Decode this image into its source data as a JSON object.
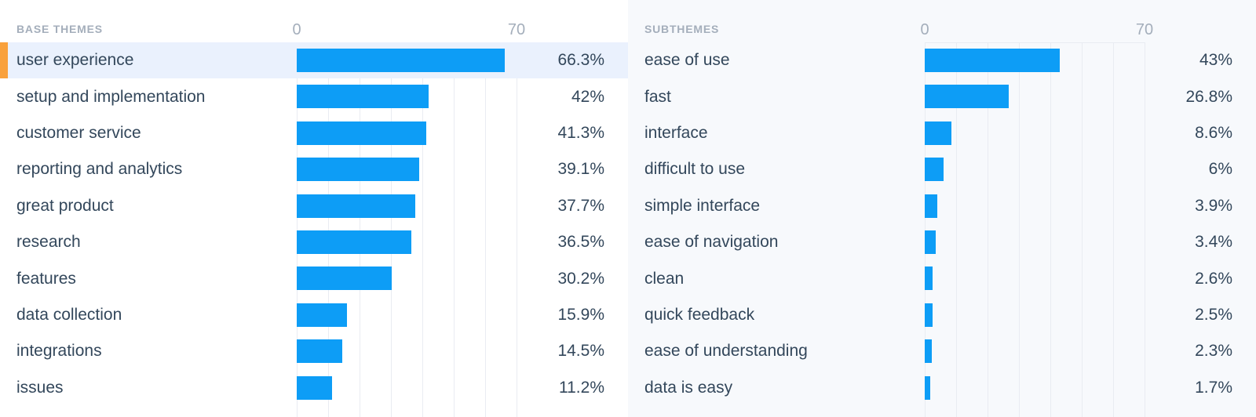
{
  "colors": {
    "bar": "#0d9df6",
    "text": "#33475b",
    "muted": "#a4aebb",
    "grid": "#e9ecf2",
    "selected_row_bg": "#eaf1fd",
    "selected_marker": "#f9a13c",
    "panel_right_bg": "#f7f9fc"
  },
  "chart_data": [
    {
      "type": "bar",
      "orientation": "horizontal",
      "title": "BASE THEMES",
      "categories": [
        "user experience",
        "setup and implementation",
        "customer service",
        "reporting and analytics",
        "great product",
        "research",
        "features",
        "data collection",
        "integrations",
        "issues"
      ],
      "values": [
        66.3,
        42,
        41.3,
        39.1,
        37.7,
        36.5,
        30.2,
        15.9,
        14.5,
        11.2
      ],
      "value_labels": [
        "66.3%",
        "42%",
        "41.3%",
        "39.1%",
        "37.7%",
        "36.5%",
        "30.2%",
        "15.9%",
        "14.5%",
        "11.2%"
      ],
      "selected_index": 0,
      "axis": {
        "min": 0,
        "max": 70,
        "ticks": [
          "0",
          "70"
        ]
      },
      "grid": true,
      "xlabel": "",
      "ylabel": ""
    },
    {
      "type": "bar",
      "orientation": "horizontal",
      "title": "SUBTHEMES",
      "categories": [
        "ease of use",
        "fast",
        "interface",
        "difficult to use",
        "simple interface",
        "ease of navigation",
        "clean",
        "quick feedback",
        "ease of understanding",
        "data is easy"
      ],
      "values": [
        43,
        26.8,
        8.6,
        6,
        3.9,
        3.4,
        2.6,
        2.5,
        2.3,
        1.7
      ],
      "value_labels": [
        "43%",
        "26.8%",
        "8.6%",
        "6%",
        "3.9%",
        "3.4%",
        "2.6%",
        "2.5%",
        "2.3%",
        "1.7%"
      ],
      "selected_index": null,
      "axis": {
        "min": 0,
        "max": 70,
        "ticks": [
          "0",
          "70"
        ]
      },
      "grid": true,
      "xlabel": "",
      "ylabel": ""
    }
  ]
}
